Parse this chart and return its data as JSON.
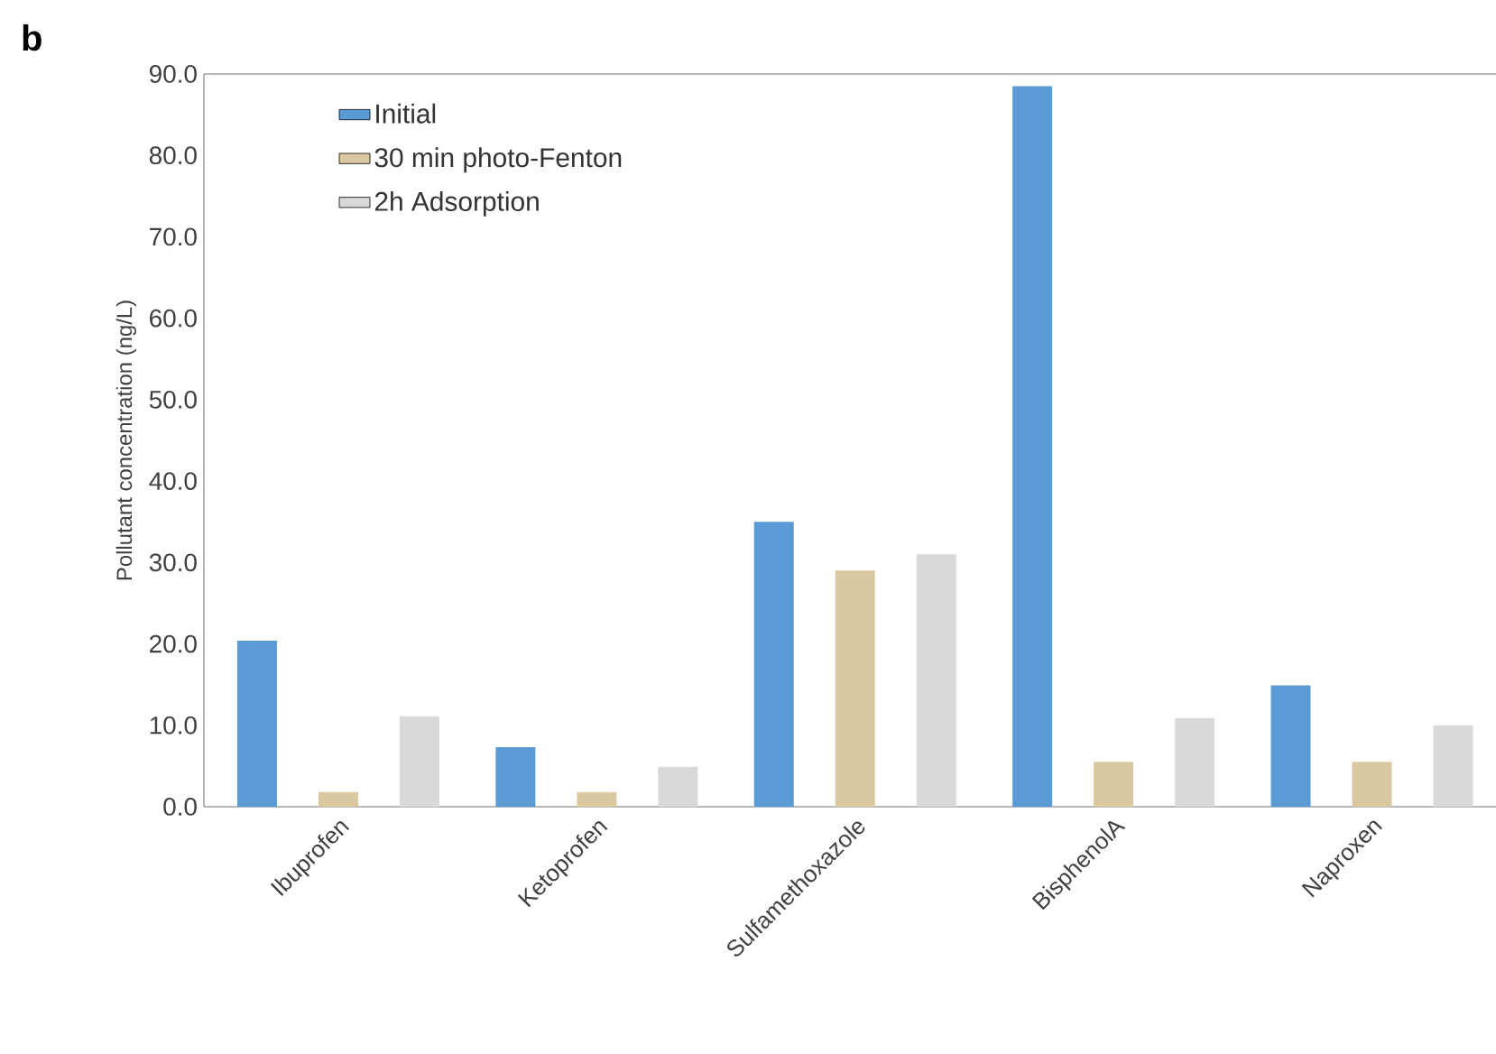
{
  "chart_data": {
    "type": "bar",
    "ylabel": "Pollutant concentration (ng/L)",
    "annotations": [
      "b"
    ],
    "categories": [
      "Ibuprofen",
      "Ketoprofen",
      "Sulfamethoxazole",
      "BisphenolA",
      "Naproxen"
    ],
    "series": [
      {
        "name": "Initial",
        "color": "#5b9bd5",
        "values": [
          20.4,
          7.3,
          35.0,
          88.5,
          14.9
        ]
      },
      {
        "name": "30 min photo-Fenton",
        "color": "#d9c8a0",
        "values": [
          1.8,
          1.8,
          29.0,
          5.5,
          5.5
        ]
      },
      {
        "name": "2h Adsorption",
        "color": "#d9d9d9",
        "values": [
          11.1,
          4.9,
          31.0,
          10.9,
          10.0
        ]
      }
    ],
    "ylim": [
      0,
      90
    ],
    "yticks": [
      {
        "value": 0,
        "label": "0.0"
      },
      {
        "value": 10,
        "label": "10.0"
      },
      {
        "value": 20,
        "label": "20.0"
      },
      {
        "value": 30,
        "label": "30.0"
      },
      {
        "value": 40,
        "label": "40.0"
      },
      {
        "value": 50,
        "label": "50.0"
      },
      {
        "value": 60,
        "label": "60.0"
      },
      {
        "value": 70,
        "label": "70.0"
      },
      {
        "value": 80,
        "label": "80.0"
      },
      {
        "value": 90,
        "label": "90.0"
      }
    ],
    "grid": false,
    "legend": "top left"
  }
}
